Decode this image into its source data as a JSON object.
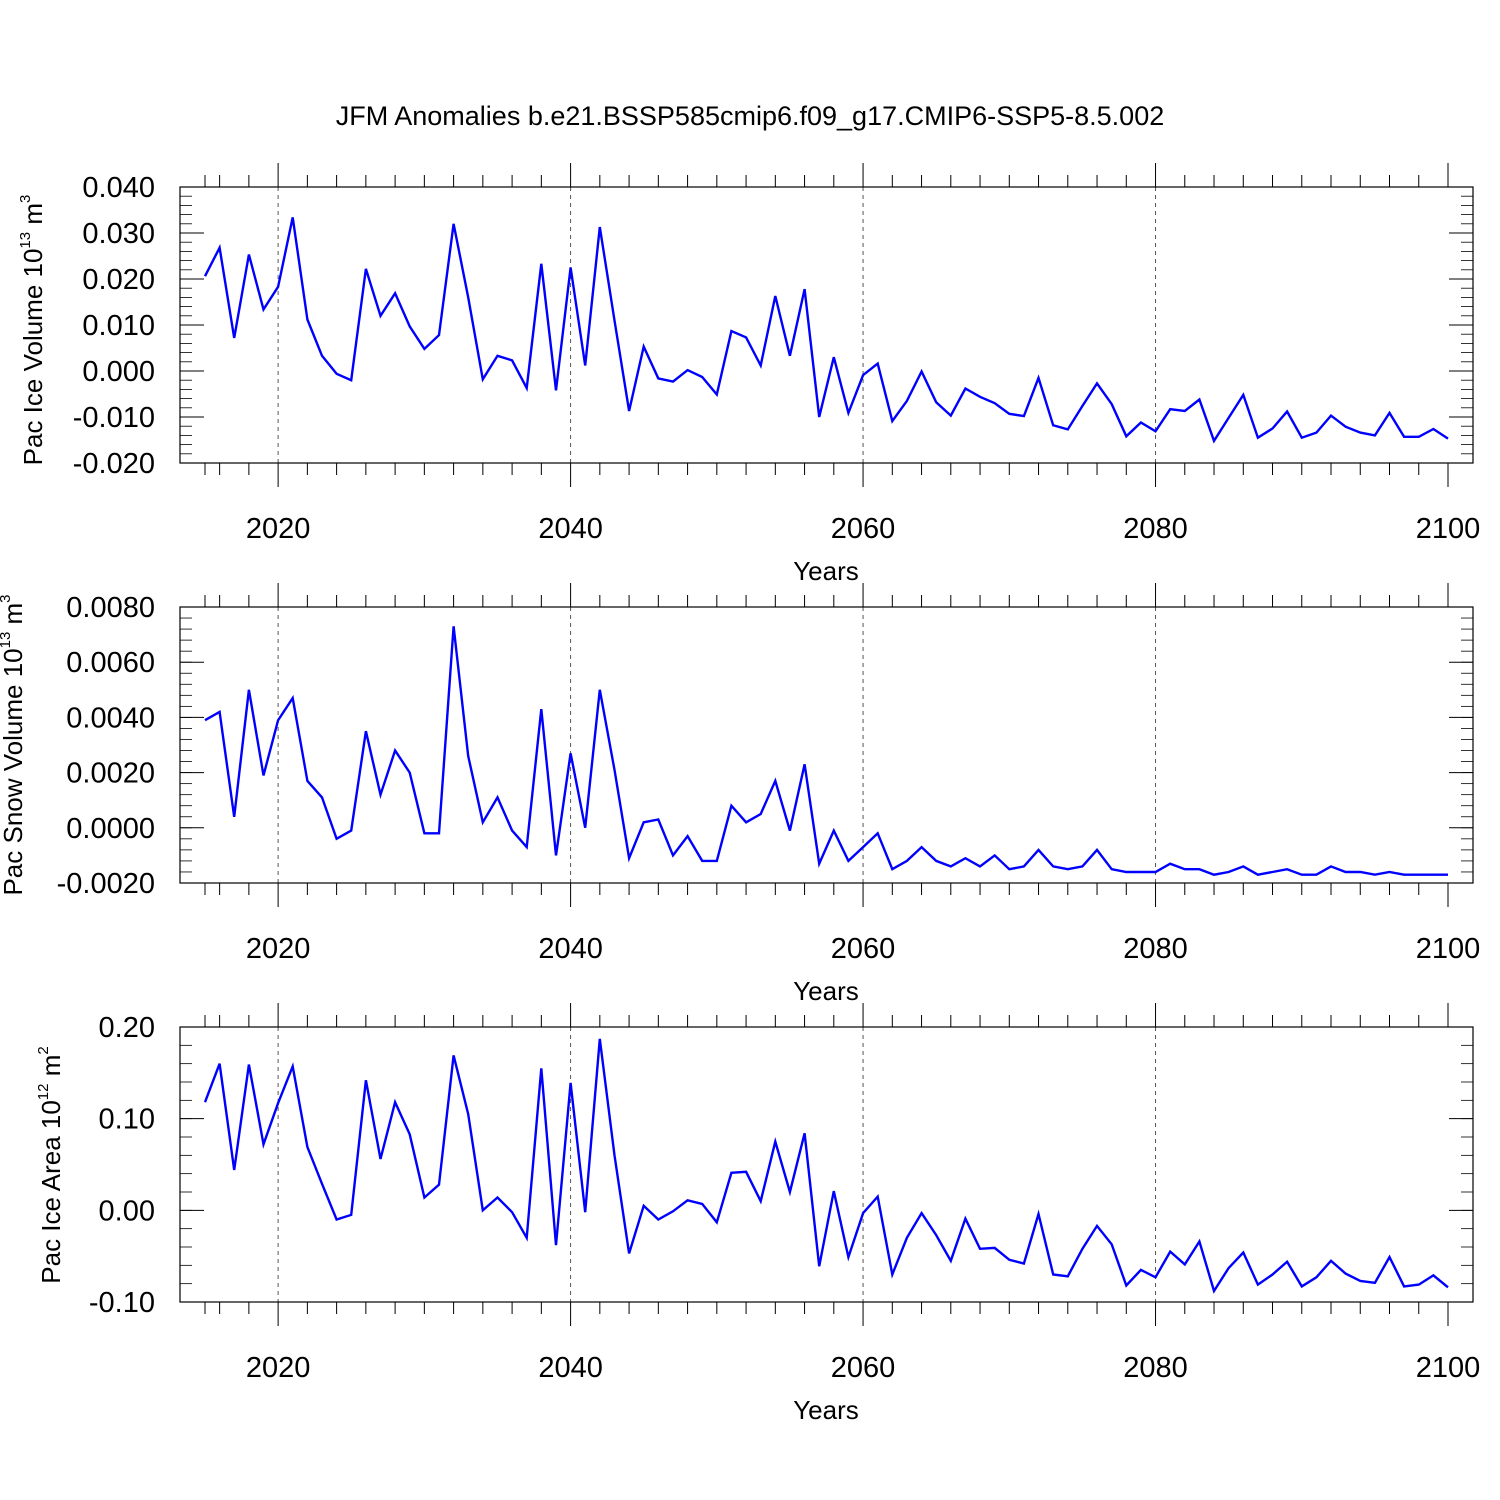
{
  "title": "JFM Anomalies b.e21.BSSP585cmip6.f09_g17.CMIP6-SSP5-8.5.002",
  "colors": {
    "series": "#0000ff",
    "axis": "#000000",
    "grid": "#555555"
  },
  "chart_data": [
    {
      "type": "line",
      "ylabel": "Pac Ice Volume 10",
      "ylabel_exp": "13",
      "ylabel_unit": " m",
      "ylabel_unit_exp": "3",
      "xlabel": "Years",
      "xlim": [
        2015,
        2100
      ],
      "ylim": [
        -0.02,
        0.04
      ],
      "yticks": [
        "0.040",
        "0.030",
        "0.020",
        "0.010",
        "0.000",
        "-0.010",
        "-0.020"
      ],
      "ytick_values": [
        0.04,
        0.03,
        0.02,
        0.01,
        0.0,
        -0.01,
        -0.02
      ],
      "xticks": [
        "2020",
        "2040",
        "2060",
        "2080",
        "2100"
      ],
      "xtick_values": [
        2020,
        2040,
        2060,
        2080,
        2100
      ],
      "x_start": 2015,
      "values": [
        0.0206,
        0.0268,
        0.0072,
        0.0253,
        0.0134,
        0.0183,
        0.0334,
        0.0112,
        0.0033,
        -0.0006,
        -0.002,
        0.0222,
        0.012,
        0.0169,
        0.0097,
        0.0048,
        0.0078,
        0.032,
        0.016,
        -0.0018,
        0.0033,
        0.0023,
        -0.0037,
        0.0233,
        -0.0042,
        0.0225,
        0.0012,
        0.0313,
        0.011,
        -0.0087,
        0.0053,
        -0.0016,
        -0.0023,
        0.0002,
        -0.0013,
        -0.0051,
        0.0087,
        0.0073,
        0.0012,
        0.0163,
        0.0033,
        0.0178,
        -0.01,
        0.003,
        -0.0091,
        -0.0009,
        0.0016,
        -0.0109,
        -0.0065,
        -0.0001,
        -0.0068,
        -0.0097,
        -0.0038,
        -0.0056,
        -0.007,
        -0.0093,
        -0.0098,
        -0.0015,
        -0.0118,
        -0.0127,
        -0.0076,
        -0.0027,
        -0.0072,
        -0.0142,
        -0.0112,
        -0.0131,
        -0.0083,
        -0.0087,
        -0.0062,
        -0.0152,
        -0.0102,
        -0.0052,
        -0.0145,
        -0.0125,
        -0.0088,
        -0.0145,
        -0.0134,
        -0.0097,
        -0.0121,
        -0.0134,
        -0.014,
        -0.0091,
        -0.0143,
        -0.0143,
        -0.0126,
        -0.0147
      ]
    },
    {
      "type": "line",
      "ylabel": "Pac Snow Volume 10",
      "ylabel_exp": "13",
      "ylabel_unit": " m",
      "ylabel_unit_exp": "3",
      "xlabel": "Years",
      "xlim": [
        2015,
        2100
      ],
      "ylim": [
        -0.002,
        0.008
      ],
      "yticks": [
        "0.0080",
        "0.0060",
        "0.0040",
        "0.0020",
        "0.0000",
        "-0.0020"
      ],
      "ytick_values": [
        0.008,
        0.006,
        0.004,
        0.002,
        0.0,
        -0.002
      ],
      "xticks": [
        "2020",
        "2040",
        "2060",
        "2080",
        "2100"
      ],
      "xtick_values": [
        2020,
        2040,
        2060,
        2080,
        2100
      ],
      "x_start": 2015,
      "values": [
        0.0039,
        0.0042,
        0.0004,
        0.005,
        0.0019,
        0.0039,
        0.0047,
        0.0017,
        0.0011,
        -0.0004,
        -0.0001,
        0.0035,
        0.0012,
        0.0028,
        0.002,
        -0.0002,
        -0.0002,
        0.0073,
        0.0026,
        0.0002,
        0.0011,
        -0.0001,
        -0.0007,
        0.0043,
        -0.001,
        0.0027,
        0.0,
        0.005,
        0.0021,
        -0.0011,
        0.0002,
        0.0003,
        -0.001,
        -0.0003,
        -0.0012,
        -0.0012,
        0.0008,
        0.0002,
        0.0005,
        0.0017,
        -0.0001,
        0.0023,
        -0.0013,
        -0.0001,
        -0.0012,
        -0.0007,
        -0.0002,
        -0.0015,
        -0.0012,
        -0.0007,
        -0.0012,
        -0.0014,
        -0.0011,
        -0.0014,
        -0.001,
        -0.0015,
        -0.0014,
        -0.0008,
        -0.0014,
        -0.0015,
        -0.0014,
        -0.0008,
        -0.0015,
        -0.0016,
        -0.0016,
        -0.0016,
        -0.0013,
        -0.0015,
        -0.0015,
        -0.0017,
        -0.0016,
        -0.0014,
        -0.0017,
        -0.0016,
        -0.0015,
        -0.0017,
        -0.0017,
        -0.0014,
        -0.0016,
        -0.0016,
        -0.0017,
        -0.0016,
        -0.0017,
        -0.0017,
        -0.0017,
        -0.0017
      ]
    },
    {
      "type": "line",
      "ylabel": "Pac Ice Area 10",
      "ylabel_exp": "12",
      "ylabel_unit": " m",
      "ylabel_unit_exp": "2",
      "xlabel": "Years",
      "xlim": [
        2015,
        2100
      ],
      "ylim": [
        -0.1,
        0.2
      ],
      "yticks": [
        "0.20",
        "0.10",
        "0.00",
        "-0.10"
      ],
      "ytick_values": [
        0.2,
        0.1,
        0.0,
        -0.1
      ],
      "xticks": [
        "2020",
        "2040",
        "2060",
        "2080",
        "2100"
      ],
      "xtick_values": [
        2020,
        2040,
        2060,
        2080,
        2100
      ],
      "x_start": 2015,
      "values": [
        0.118,
        0.16,
        0.044,
        0.159,
        0.072,
        0.117,
        0.157,
        0.069,
        0.029,
        -0.01,
        -0.005,
        0.142,
        0.056,
        0.118,
        0.083,
        0.014,
        0.028,
        0.169,
        0.105,
        0.0,
        0.014,
        -0.002,
        -0.03,
        0.155,
        -0.038,
        0.139,
        -0.002,
        0.187,
        0.06,
        -0.047,
        0.005,
        -0.01,
        -0.001,
        0.011,
        0.007,
        -0.013,
        0.041,
        0.042,
        0.01,
        0.075,
        0.02,
        0.084,
        -0.061,
        0.021,
        -0.051,
        -0.003,
        0.015,
        -0.07,
        -0.03,
        -0.003,
        -0.027,
        -0.055,
        -0.009,
        -0.042,
        -0.041,
        -0.054,
        -0.058,
        -0.004,
        -0.07,
        -0.072,
        -0.042,
        -0.017,
        -0.037,
        -0.082,
        -0.065,
        -0.073,
        -0.045,
        -0.059,
        -0.034,
        -0.088,
        -0.063,
        -0.046,
        -0.081,
        -0.07,
        -0.056,
        -0.083,
        -0.073,
        -0.055,
        -0.069,
        -0.077,
        -0.079,
        -0.051,
        -0.083,
        -0.081,
        -0.071,
        -0.084
      ]
    }
  ]
}
